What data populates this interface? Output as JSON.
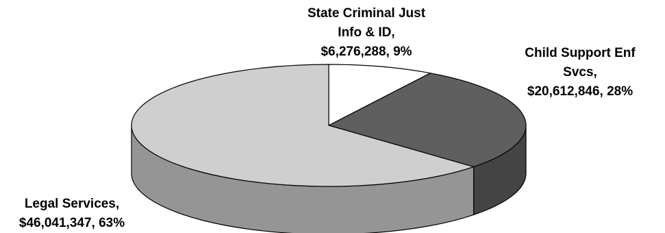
{
  "chart_data": {
    "type": "pie",
    "style": "3d",
    "title": "",
    "slices": [
      {
        "label_lines": [
          "State Criminal Just",
          "Info & ID,",
          "$6,276,288, 9%"
        ],
        "name": "State Criminal Just Info & ID",
        "value": 6276288,
        "percent": 9,
        "color": "#ffffff"
      },
      {
        "label_lines": [
          "Child Support Enf",
          "Svcs,",
          "$20,612,846, 28%"
        ],
        "name": "Child Support Enf Svcs",
        "value": 20612846,
        "percent": 28,
        "color": "#5f5f5f"
      },
      {
        "label_lines": [
          "Legal Services,",
          "$46,041,347, 63%"
        ],
        "name": "Legal Services",
        "value": 46041347,
        "percent": 63,
        "color": "#cfcfcf"
      }
    ]
  }
}
